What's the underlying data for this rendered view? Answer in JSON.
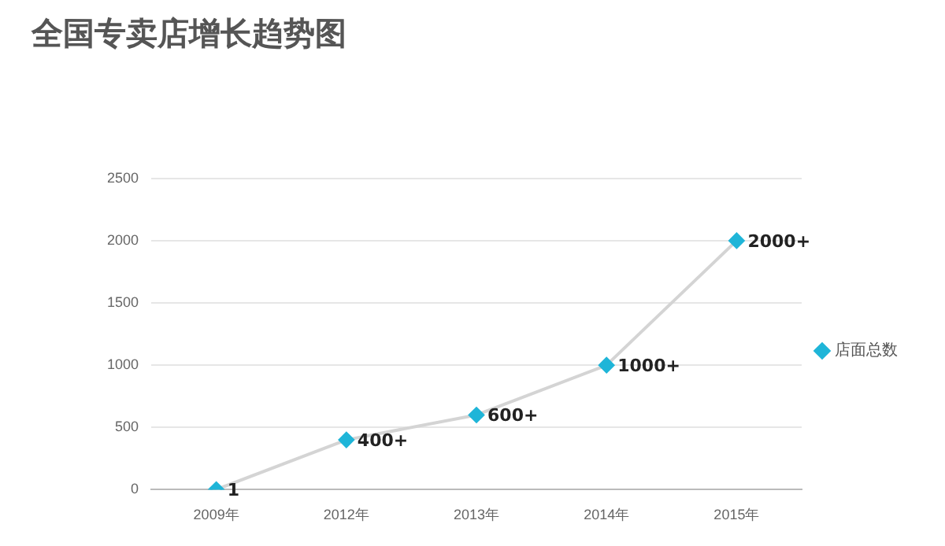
{
  "chart_data": {
    "type": "line",
    "title": "全国专卖店增长趋势图",
    "categories": [
      "2009年",
      "2012年",
      "2013年",
      "2014年",
      "2015年"
    ],
    "series": [
      {
        "name": "店面总数",
        "color": "#1fb5d8",
        "values": [
          1,
          400,
          600,
          1000,
          2000
        ],
        "value_labels": [
          "1",
          "400+",
          "600+",
          "1000+",
          "2000+"
        ]
      }
    ],
    "ylim": [
      0,
      2500
    ],
    "yticks": [
      0,
      500,
      1000,
      1500,
      2000,
      2500
    ],
    "grid": "y",
    "legend": "right",
    "marker": "diamond"
  }
}
